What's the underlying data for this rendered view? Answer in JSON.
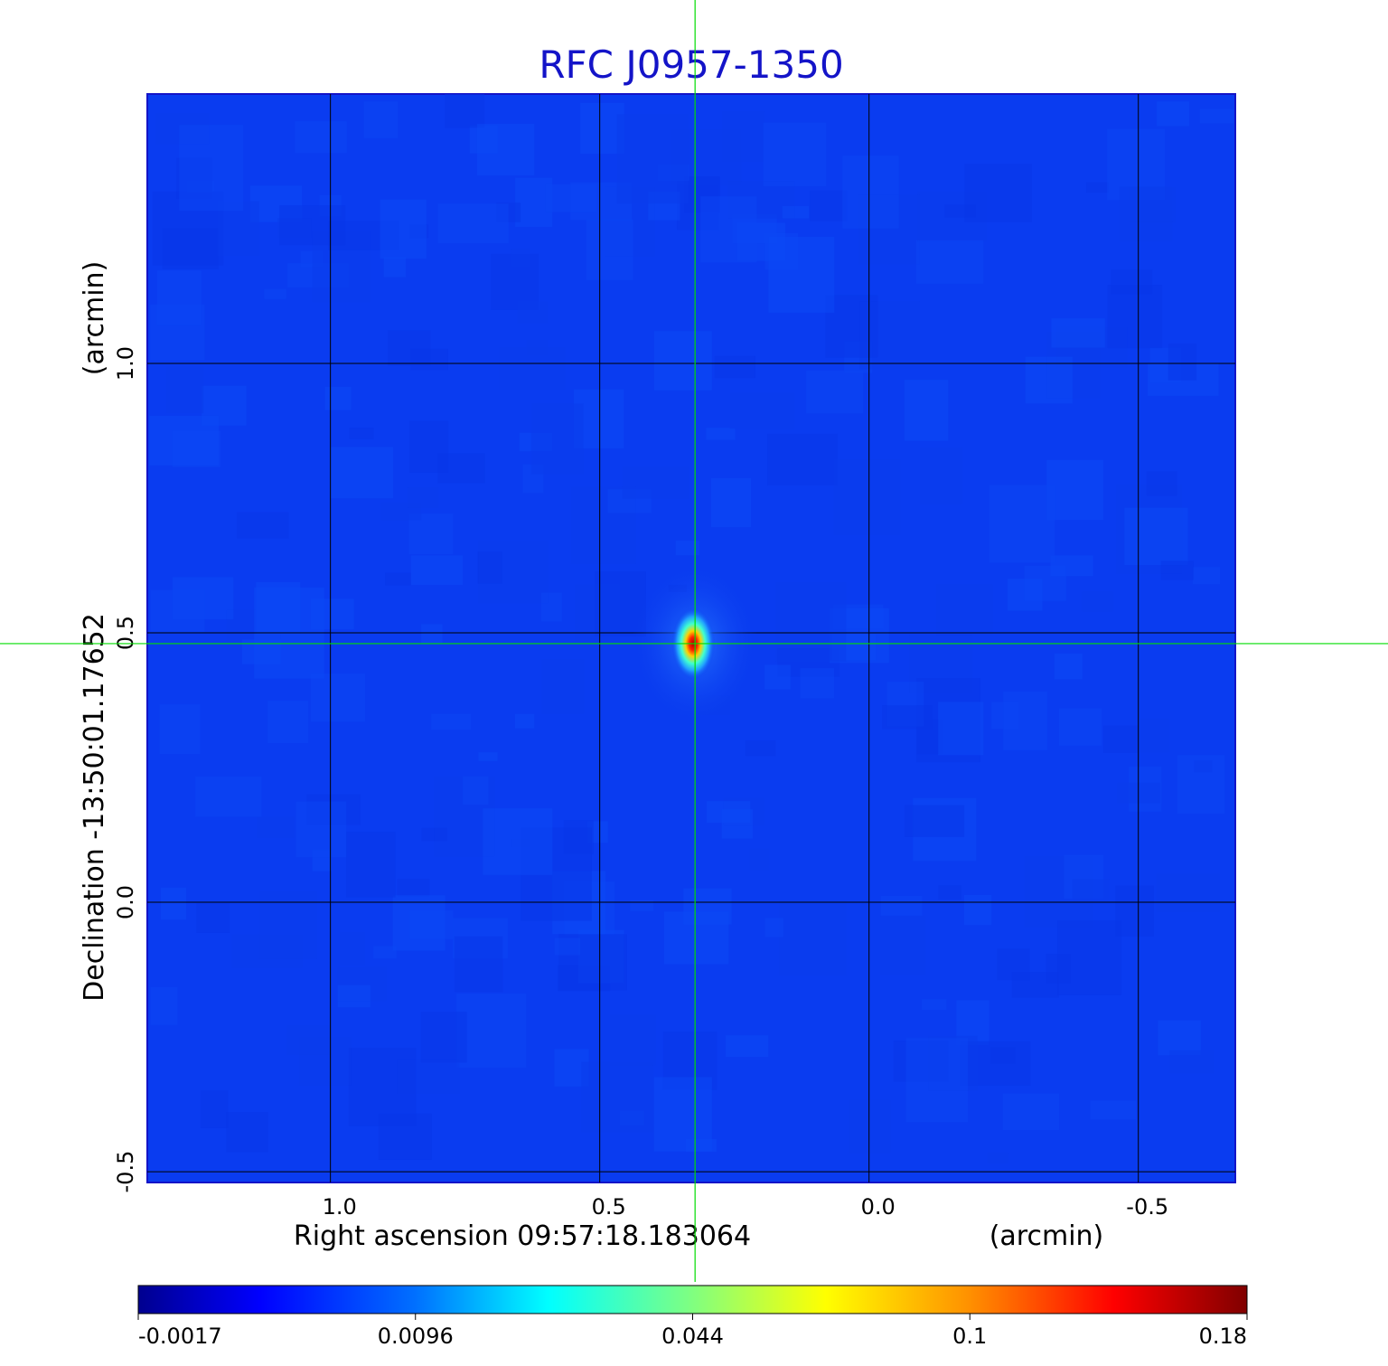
{
  "chart_data": {
    "type": "heatmap",
    "title": "RFC J0957-1350",
    "xlabel": "Right ascension  09:57:18.183064",
    "xunit": "(arcmin)",
    "ylabel": "Declination  -13:50:01.17652",
    "yunit": "(arcmin)",
    "x_axis": {
      "direction": "decreasing",
      "xlim": [
        1.34,
        -0.68
      ],
      "ticks": [
        1.0,
        0.5,
        0.0,
        -0.5
      ],
      "tick_labels": [
        "1.0",
        "0.5",
        "0.0",
        "-0.5"
      ]
    },
    "y_axis": {
      "ylim": [
        -0.52,
        1.5
      ],
      "ticks": [
        -0.5,
        0.0,
        0.5,
        1.0
      ],
      "tick_labels": [
        "-0.5",
        "0.0",
        "0.5",
        "1.0"
      ]
    },
    "grid": true,
    "crosshair": {
      "x": 0.323,
      "y": 0.48,
      "color": "#00dd00"
    },
    "source": {
      "x": 0.323,
      "y": 0.48,
      "peak": 0.18
    },
    "colorbar": {
      "position": "bottom",
      "colormap": "jet",
      "tick_labels": [
        "-0.0017",
        "0.0096",
        "0.044",
        "0.1",
        "0.18"
      ]
    },
    "colors": {
      "title": "#1414c8",
      "background_map": "#0a3cf0",
      "grid": "#000000"
    }
  }
}
